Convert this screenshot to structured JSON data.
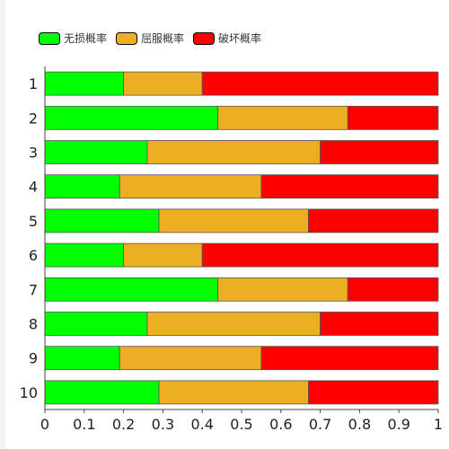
{
  "chart_data": {
    "type": "bar",
    "orientation": "horizontal",
    "stacked": true,
    "categories": [
      "1",
      "2",
      "3",
      "4",
      "5",
      "6",
      "7",
      "8",
      "9",
      "10"
    ],
    "series": [
      {
        "name": "无损概率",
        "color": "#00ff00",
        "values": [
          0.2,
          0.44,
          0.26,
          0.19,
          0.29,
          0.2,
          0.44,
          0.26,
          0.19,
          0.29
        ]
      },
      {
        "name": "屈服概率",
        "color": "#ebaf21",
        "values": [
          0.2,
          0.33,
          0.44,
          0.36,
          0.38,
          0.2,
          0.33,
          0.44,
          0.36,
          0.38
        ]
      },
      {
        "name": "破坏概率",
        "color": "#ff0000",
        "values": [
          0.6,
          0.23,
          0.3,
          0.45,
          0.33,
          0.6,
          0.23,
          0.3,
          0.45,
          0.33
        ]
      }
    ],
    "xlim": [
      0,
      1
    ],
    "xticks": [
      "0",
      "0.1",
      "0.2",
      "0.3",
      "0.4",
      "0.5",
      "0.6",
      "0.7",
      "0.8",
      "0.9",
      "1"
    ],
    "legend_position": "top-left",
    "grid": false
  }
}
